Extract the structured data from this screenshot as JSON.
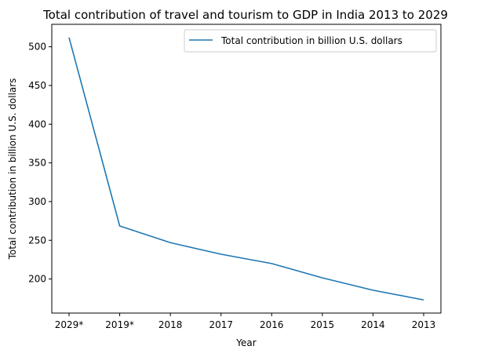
{
  "chart_data": {
    "type": "line",
    "title": "Total contribution of travel and tourism to GDP in India 2013 to 2029",
    "xlabel": "Year",
    "ylabel": "Total contribution in billion U.S. dollars",
    "categories": [
      "2029*",
      "2019*",
      "2018",
      "2017",
      "2016",
      "2015",
      "2014",
      "2013"
    ],
    "series": [
      {
        "name": "Total contribution in billion U.S. dollars",
        "color": "#1f77b4",
        "values": [
          512,
          268.5,
          247,
          232,
          220,
          201.5,
          185.5,
          173
        ]
      }
    ],
    "ylim": [
      156,
      529
    ],
    "yticks": [
      200,
      250,
      300,
      350,
      400,
      450,
      500
    ],
    "grid": false,
    "legend_position": "top-right"
  }
}
